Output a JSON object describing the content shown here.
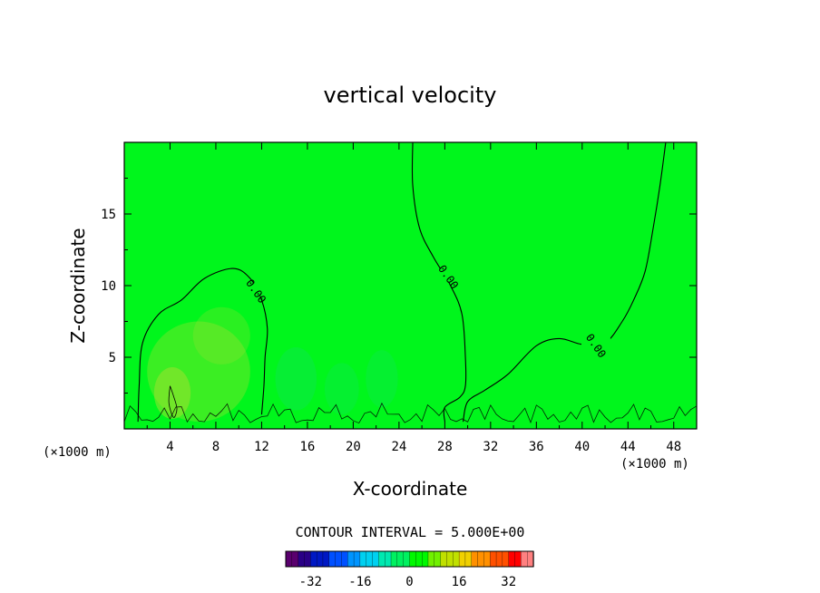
{
  "chart_data": {
    "type": "heatmap",
    "title": "vertical velocity",
    "xlabel": "X-coordinate",
    "ylabel": "Z-coordinate",
    "x_unit_label": "(×1000 m)",
    "z_unit_label": "(×1000 m)",
    "xlim": [
      0,
      50
    ],
    "ylim": [
      0,
      20
    ],
    "x_ticks": [
      4,
      8,
      12,
      16,
      20,
      24,
      28,
      32,
      36,
      40,
      44,
      48
    ],
    "y_ticks": [
      5,
      10,
      15
    ],
    "contour_interval_text": "CONTOUR INTERVAL = 5.000E+00",
    "background_value": 0,
    "contours": [
      {
        "label": "0.00",
        "label_at": [
          11.5,
          9.6
        ],
        "points": [
          [
            1.2,
            0.5
          ],
          [
            1.3,
            3
          ],
          [
            1.6,
            6
          ],
          [
            3,
            8
          ],
          [
            5,
            9
          ],
          [
            7,
            10.5
          ],
          [
            9.5,
            11.2
          ],
          [
            11,
            10.5
          ],
          [
            12,
            9
          ],
          [
            12.5,
            7
          ],
          [
            12.3,
            5
          ],
          [
            12.2,
            3
          ],
          [
            12.0,
            1
          ]
        ]
      },
      {
        "label": "0.00",
        "label_at": [
          28.3,
          10.6
        ],
        "points": [
          [
            25.2,
            20
          ],
          [
            25.2,
            17
          ],
          [
            25.8,
            14
          ],
          [
            27,
            12
          ],
          [
            28.5,
            10
          ],
          [
            29.5,
            8
          ],
          [
            29.8,
            5
          ],
          [
            29.8,
            3
          ],
          [
            29.3,
            2.2
          ],
          [
            28,
            1.5
          ],
          [
            28,
            0.5
          ]
        ]
      },
      {
        "label": "0.00",
        "label_at": [
          41.2,
          5.8
        ],
        "points": [
          [
            47.3,
            20
          ],
          [
            46.8,
            17
          ],
          [
            46.2,
            14
          ],
          [
            45.5,
            11
          ],
          [
            44.5,
            9
          ],
          [
            43.5,
            7.5
          ],
          [
            42,
            6
          ],
          [
            40,
            5.9
          ],
          [
            38,
            6.3
          ],
          [
            36,
            5.8
          ],
          [
            33.5,
            3.8
          ],
          [
            31.5,
            2.7
          ],
          [
            30,
            1.9
          ],
          [
            29.6,
            0.5
          ]
        ]
      }
    ],
    "local_contour": {
      "label": "",
      "points": [
        [
          4,
          3
        ],
        [
          4.3,
          2.3
        ],
        [
          4.6,
          1.4
        ],
        [
          4.3,
          0.8
        ],
        [
          3.9,
          1.8
        ],
        [
          4,
          3
        ]
      ]
    },
    "colorbar": {
      "labels": [
        "-32",
        "-16",
        "0",
        "16",
        "32"
      ],
      "ticks": [
        -32,
        -16,
        0,
        16,
        32
      ],
      "range": [
        -40,
        40
      ],
      "colors": [
        "#5a006e",
        "#2a0086",
        "#0018c4",
        "#0050ff",
        "#0094ff",
        "#00d0f0",
        "#00e8b0",
        "#00f060",
        "#00f800",
        "#70f000",
        "#c0e000",
        "#f0d000",
        "#ff9000",
        "#ff5000",
        "#ff0000",
        "#ff8080"
      ]
    },
    "grid": false,
    "legend": "none"
  },
  "colors": {
    "field": "#00f61c",
    "field_light": "#a8e030",
    "field_cool": "#10e060",
    "axis": "#000000",
    "background": "#ffffff"
  }
}
